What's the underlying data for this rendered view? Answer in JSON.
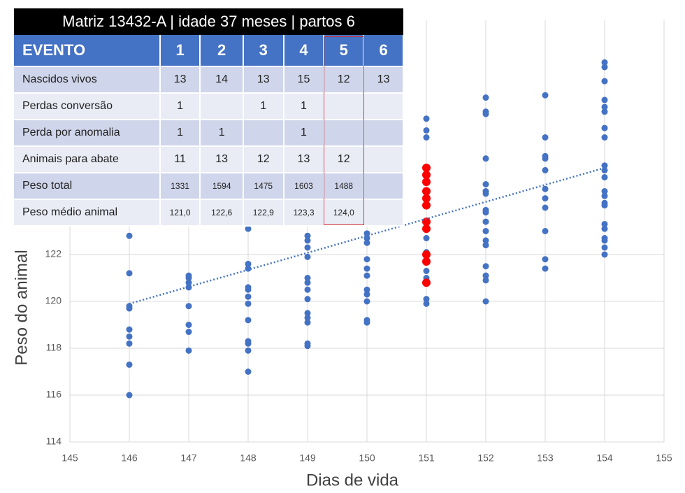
{
  "chart_data": {
    "type": "scatter",
    "x_label": "Dias de vida",
    "y_label": "Peso do animal",
    "xlim": [
      145,
      155
    ],
    "xticks": [
      145,
      146,
      147,
      148,
      149,
      150,
      151,
      152,
      153,
      154,
      155
    ],
    "ylim": [
      114,
      132
    ],
    "yticks": [
      114,
      116,
      118,
      120,
      122
    ],
    "grid": true,
    "series": [
      {
        "color": "#4472c4",
        "x": [
          146,
          146,
          146,
          146,
          146,
          146,
          146,
          146,
          146,
          147,
          147,
          147,
          147,
          147,
          147,
          147,
          147,
          148,
          148,
          148,
          148,
          148,
          148,
          148,
          148,
          148,
          148,
          148,
          148,
          149,
          149,
          149,
          149,
          149,
          149,
          149,
          149,
          149,
          149,
          149,
          149,
          149,
          150,
          150,
          150,
          150,
          150,
          150,
          150,
          150,
          150,
          150,
          150,
          151,
          151,
          151,
          151,
          151,
          151,
          151,
          151,
          151,
          152,
          152,
          152,
          152,
          152,
          152,
          152,
          152,
          152,
          152,
          152,
          152,
          152,
          152,
          152,
          152,
          152,
          153,
          153,
          153,
          153,
          153,
          153,
          153,
          153,
          153,
          153,
          153,
          154,
          154,
          154,
          154,
          154,
          154,
          154,
          154,
          154,
          154,
          154,
          154,
          154,
          154,
          154,
          154,
          154,
          154,
          154,
          154,
          154
        ],
        "values": [
          122.8,
          121.2,
          119.8,
          119.7,
          118.8,
          118.5,
          118.2,
          117.3,
          116.0,
          121.1,
          121.0,
          120.8,
          120.6,
          119.8,
          119.0,
          118.7,
          117.9,
          123.1,
          121.6,
          121.4,
          120.6,
          120.5,
          120.2,
          119.9,
          119.2,
          118.3,
          118.2,
          117.9,
          117.0,
          122.8,
          122.6,
          122.3,
          121.9,
          121.0,
          120.8,
          120.5,
          120.1,
          119.5,
          119.3,
          119.1,
          118.2,
          118.1,
          122.9,
          122.7,
          122.5,
          121.8,
          121.4,
          121.1,
          120.5,
          120.3,
          120.0,
          119.2,
          119.1,
          127.8,
          127.3,
          127.0,
          122.7,
          122.1,
          121.3,
          121.0,
          120.1,
          119.9,
          128.7,
          128.1,
          128.0,
          126.1,
          125.0,
          124.7,
          124.6,
          123.9,
          123.8,
          123.4,
          123.0,
          122.6,
          122.4,
          121.5,
          121.1,
          120.9,
          120.0,
          128.8,
          127.0,
          126.2,
          126.1,
          125.6,
          124.8,
          124.4,
          124.0,
          123.0,
          121.8,
          121.4,
          130.2,
          130.0,
          129.4,
          128.6,
          128.3,
          128.1,
          127.4,
          127.0,
          125.8,
          125.6,
          125.3,
          124.7,
          124.5,
          124.2,
          124.1,
          123.3,
          123.1,
          122.7,
          122.6,
          122.3,
          122.0
        ]
      },
      {
        "color": "#ff0000",
        "x": [
          151,
          151,
          151,
          151,
          151,
          151,
          151,
          151,
          151,
          151,
          151
        ],
        "values": [
          125.7,
          125.4,
          125.1,
          124.7,
          124.4,
          124.1,
          123.4,
          123.1,
          122.0,
          121.7,
          120.8
        ]
      }
    ],
    "trendline": {
      "color": "#4472c4",
      "x": [
        146,
        154
      ],
      "values": [
        119.9,
        125.7
      ]
    }
  },
  "table": {
    "title": "Matriz 13432-A | idade 37 meses  | partos 6",
    "header": [
      "EVENTO",
      "1",
      "2",
      "3",
      "4",
      "5",
      "6"
    ],
    "rows": [
      [
        "Nascidos vivos",
        "13",
        "14",
        "13",
        "15",
        "12",
        "13"
      ],
      [
        "Perdas conversão",
        "1",
        null,
        "1",
        "1",
        null,
        null
      ],
      [
        "Perda por anomalia",
        "1",
        "1",
        null,
        "1",
        null,
        null
      ],
      [
        "Animais para abate",
        "11",
        "13",
        "12",
        "13",
        "12",
        null
      ],
      [
        "Peso total",
        "1331",
        "1594",
        "1475",
        "1603",
        "1488",
        null
      ],
      [
        "Peso médio animal",
        "121,0",
        "122,6",
        "122,9",
        "123,3",
        "124,0",
        null
      ]
    ]
  }
}
